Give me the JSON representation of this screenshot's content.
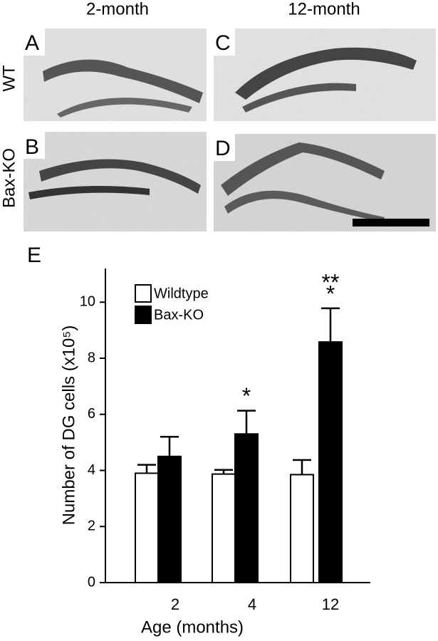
{
  "figure": {
    "column_titles": [
      "2-month",
      "12-month"
    ],
    "row_titles": [
      "WT",
      "Bax-KO"
    ],
    "panel_labels": [
      "A",
      "B",
      "C",
      "D",
      "E"
    ]
  },
  "chart_data": {
    "type": "bar",
    "x_label": "Age (months)",
    "y_label": "Number of DG cells (x10⁵)",
    "categories": [
      "2",
      "4",
      "12"
    ],
    "series": [
      {
        "name": "Wildtype",
        "color": "#ffffff",
        "values": [
          3.9,
          3.87,
          3.85
        ],
        "errors": [
          0.3,
          0.15,
          0.52
        ]
      },
      {
        "name": "Bax-KO",
        "color": "#000000",
        "values": [
          4.5,
          5.3,
          8.58
        ],
        "errors": [
          0.7,
          0.83,
          1.2
        ]
      }
    ],
    "annotations": [
      "*",
      "*",
      "**"
    ],
    "ylim": [
      0,
      11.2
    ],
    "yticks": [
      0,
      2,
      4,
      6,
      8,
      10
    ],
    "legend": "upper left",
    "grid": false
  }
}
